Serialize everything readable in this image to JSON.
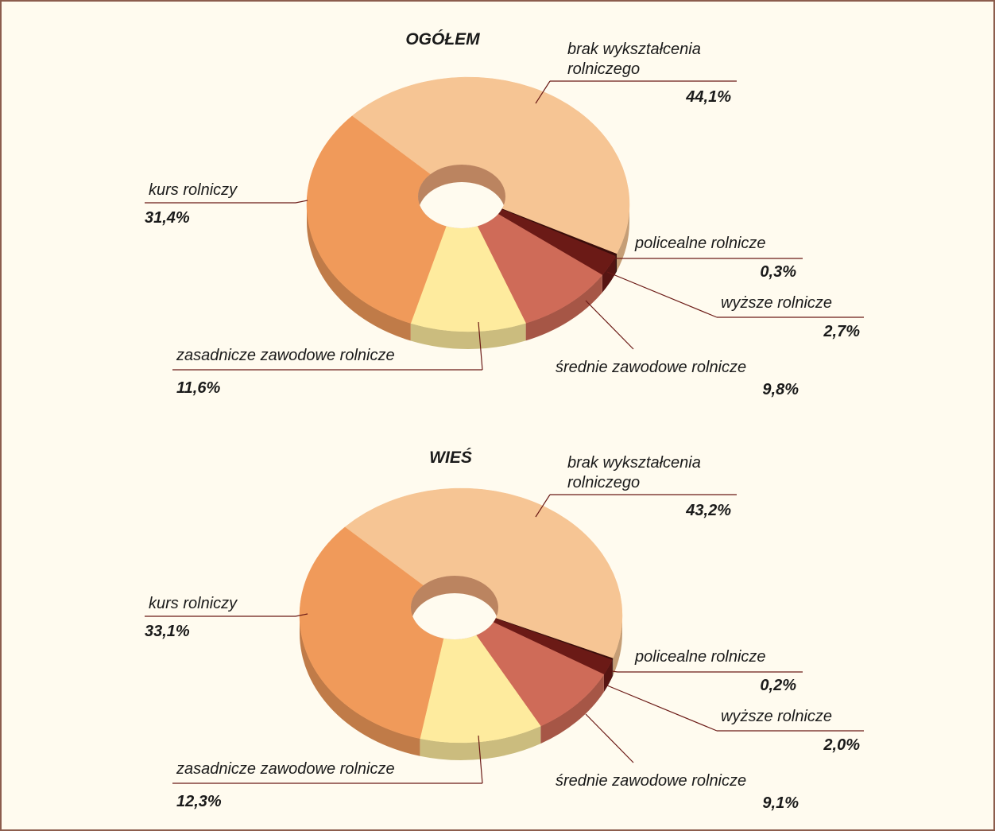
{
  "chart_data": [
    {
      "type": "pie",
      "title": "OGÓŁEM",
      "categories": [
        "brak wykształcenia rolniczego",
        "policealne rolnicze",
        "wyższe rolnicze",
        "średnie zawodowe rolnicze",
        "zasadnicze zawodowe rolnicze",
        "kurs rolniczy"
      ],
      "values": [
        44.1,
        0.3,
        2.7,
        9.8,
        11.6,
        31.4
      ],
      "value_labels": [
        "44,1%",
        "0,3%",
        "2,7%",
        "9,8%",
        "11,6%",
        "31,4%"
      ],
      "colors": [
        "#f6c594",
        "#3a0d0a",
        "#6b1a16",
        "#cf6b58",
        "#feeb9e",
        "#f09a5a"
      ]
    },
    {
      "type": "pie",
      "title": "WIEŚ",
      "categories": [
        "brak wykształcenia rolniczego",
        "policealne rolnicze",
        "wyższe rolnicze",
        "średnie zawodowe rolnicze",
        "zasadnicze zawodowe rolnicze",
        "kurs rolniczy"
      ],
      "values": [
        43.2,
        0.2,
        2.0,
        9.1,
        12.3,
        33.1
      ],
      "value_labels": [
        "43,2%",
        "0,2%",
        "2,0%",
        "9,1%",
        "12,3%",
        "33,1%"
      ],
      "colors": [
        "#f6c594",
        "#3a0d0a",
        "#6b1a16",
        "#cf6b58",
        "#feeb9e",
        "#f09a5a"
      ]
    }
  ]
}
